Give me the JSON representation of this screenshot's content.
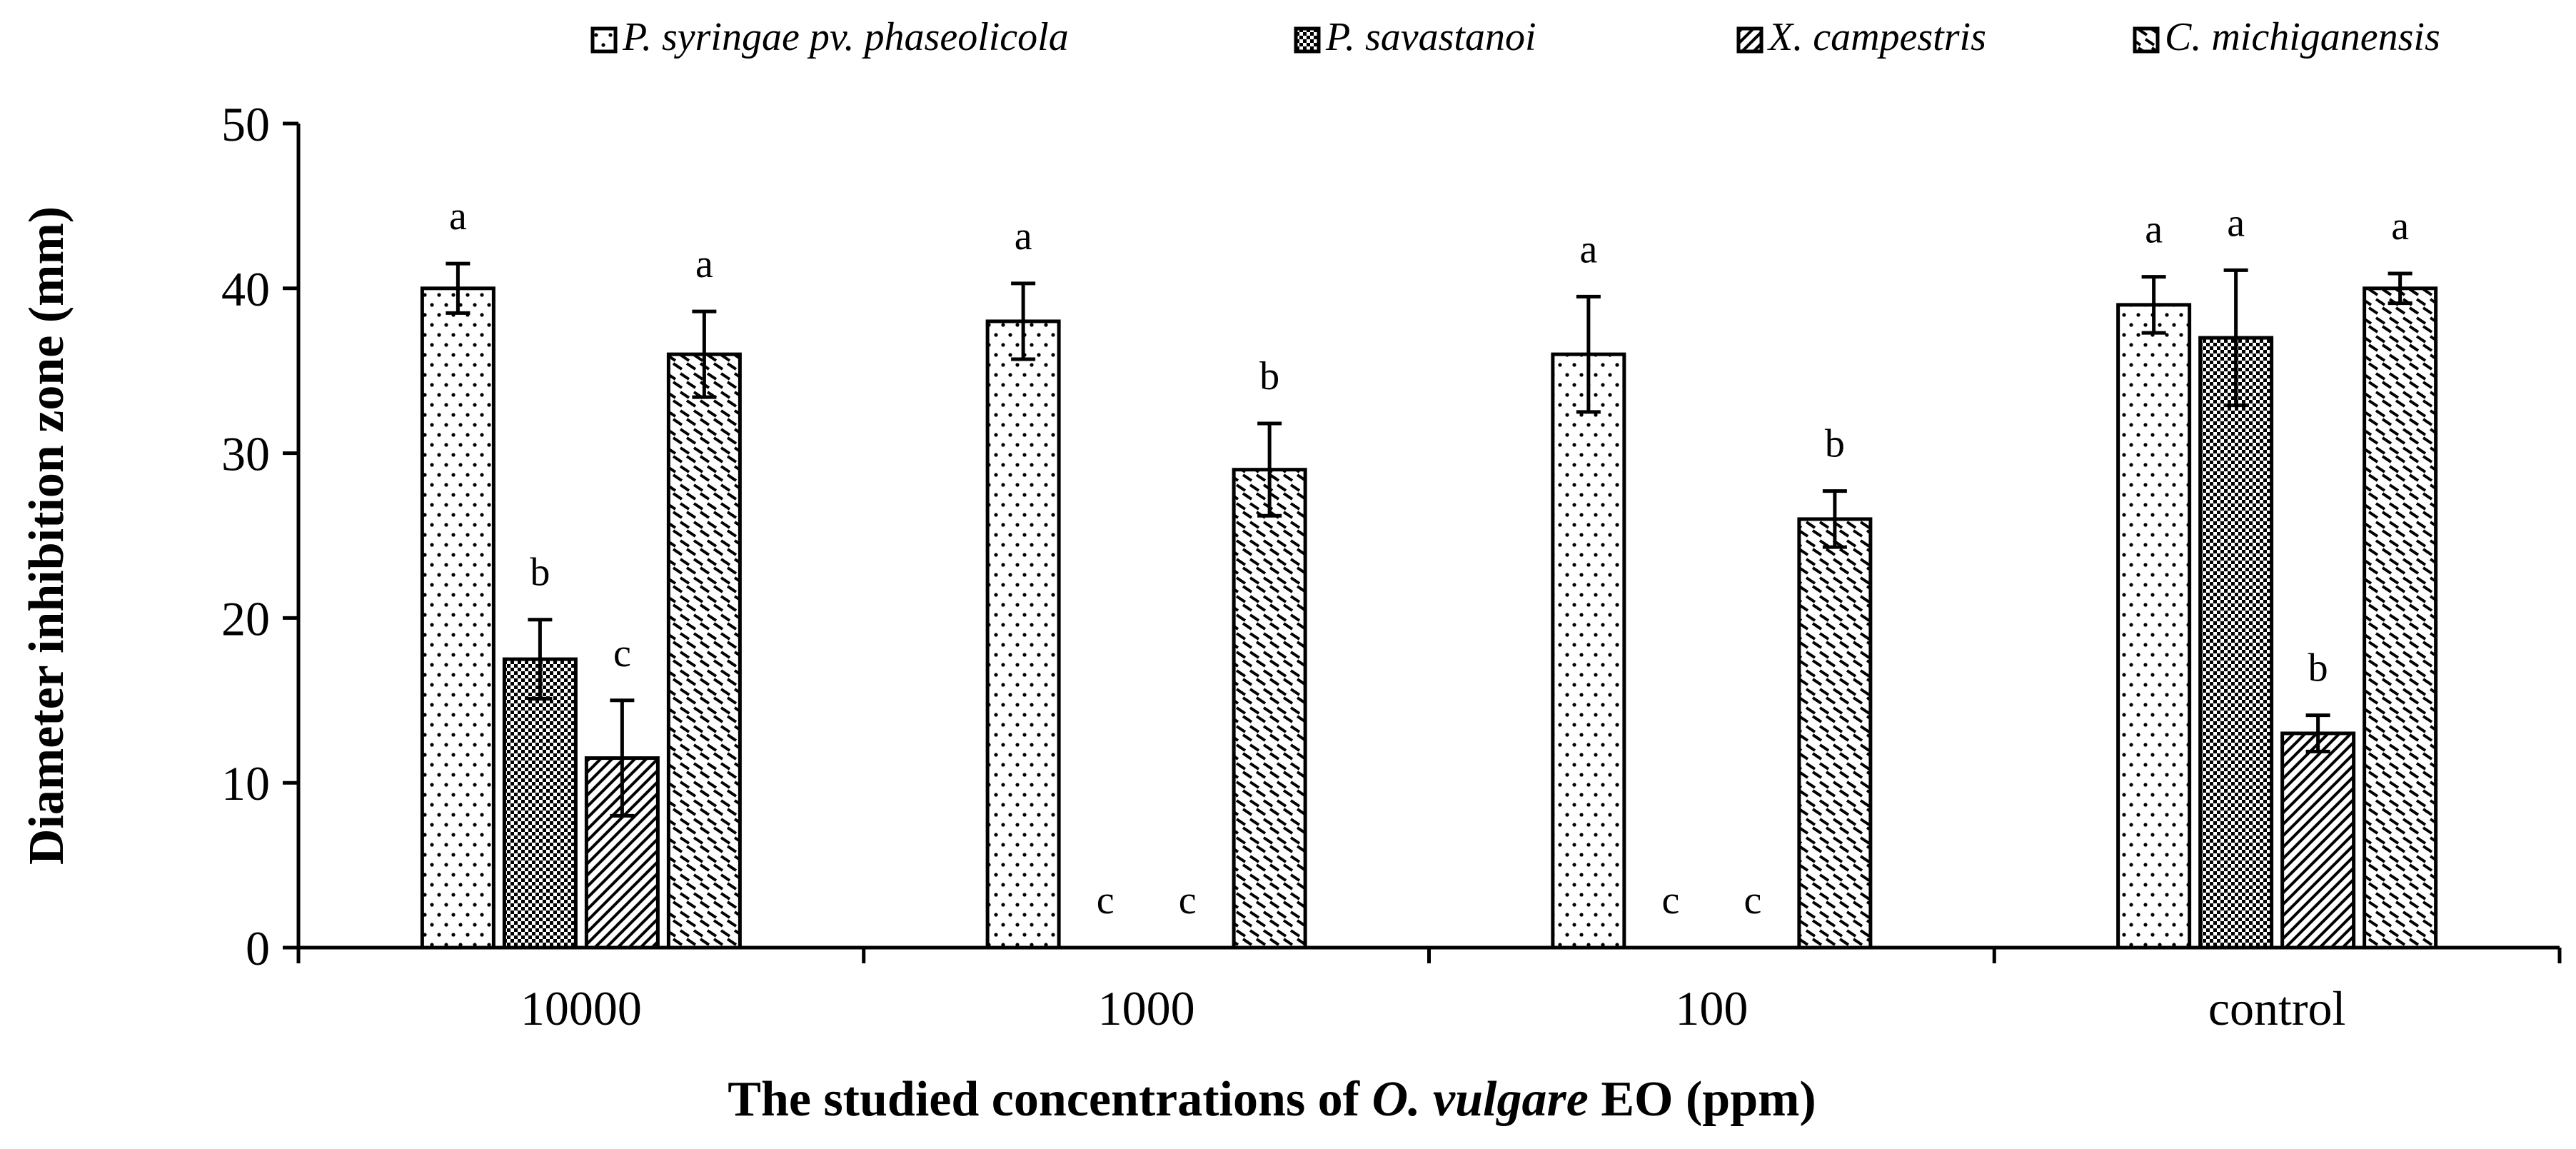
{
  "chart_data": {
    "type": "bar",
    "title": "",
    "xlabel_parts": [
      "The studied concentrations of ",
      "O. vulgare",
      " EO (ppm)"
    ],
    "ylabel": "Diameter inhibition zone (mm)",
    "ylim": [
      0,
      50
    ],
    "yticks": [
      "0",
      "10",
      "20",
      "30",
      "40",
      "50"
    ],
    "categories": [
      "10000",
      "1000",
      "100",
      "control"
    ],
    "legend_position": "top",
    "series": [
      {
        "name": "P. syringae pv. phaseolicola",
        "pattern": "dots",
        "values": [
          40,
          38,
          36,
          39
        ],
        "errors": [
          1.5,
          2.3,
          3.5,
          1.7
        ],
        "letters": [
          "a",
          "a",
          "a",
          "a"
        ]
      },
      {
        "name": "P. savastanoi",
        "pattern": "checker",
        "values": [
          17.5,
          0,
          0,
          37
        ],
        "errors": [
          2.4,
          0,
          0,
          4.1
        ],
        "letters": [
          "b",
          "c",
          "c",
          "a"
        ]
      },
      {
        "name": "X. campestris",
        "pattern": "diagonal",
        "values": [
          11.5,
          0,
          0,
          13
        ],
        "errors": [
          3.5,
          0,
          0,
          1.1
        ],
        "letters": [
          "c",
          "c",
          "c",
          "b"
        ]
      },
      {
        "name": "C. michiganensis",
        "pattern": "dashes",
        "values": [
          36,
          29,
          26,
          40
        ],
        "errors": [
          2.6,
          2.8,
          1.7,
          0.9
        ],
        "letters": [
          "a",
          "b",
          "b",
          "a"
        ]
      }
    ]
  }
}
